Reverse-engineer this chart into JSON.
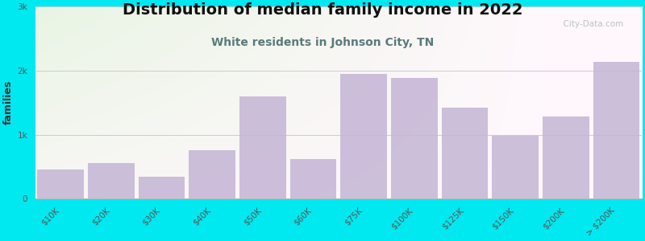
{
  "title": "Distribution of median family income in 2022",
  "subtitle": "White residents in Johnson City, TN",
  "ylabel": "families",
  "categories": [
    "$10K",
    "$20K",
    "$30K",
    "$40K",
    "$50K",
    "$60K",
    "$75K",
    "$100K",
    "$125K",
    "$150K",
    "$200K",
    "> $200K"
  ],
  "values": [
    450,
    560,
    340,
    750,
    1600,
    620,
    1950,
    1880,
    1420,
    980,
    1280,
    2130
  ],
  "bar_color": "#c4b5d5",
  "background_outer": "#00e8f0",
  "title_fontsize": 14,
  "subtitle_fontsize": 10,
  "ylabel_fontsize": 9,
  "tick_fontsize": 7.5,
  "ytick_labels": [
    "0",
    "1k",
    "2k",
    "3k"
  ],
  "ytick_values": [
    0,
    1000,
    2000,
    3000
  ],
  "ylim": [
    0,
    3000
  ],
  "watermark": "  City-Data.com",
  "title_color": "#111111",
  "subtitle_color": "#5a7a7a",
  "ylabel_color": "#333333",
  "grid_color": "#cccccc"
}
